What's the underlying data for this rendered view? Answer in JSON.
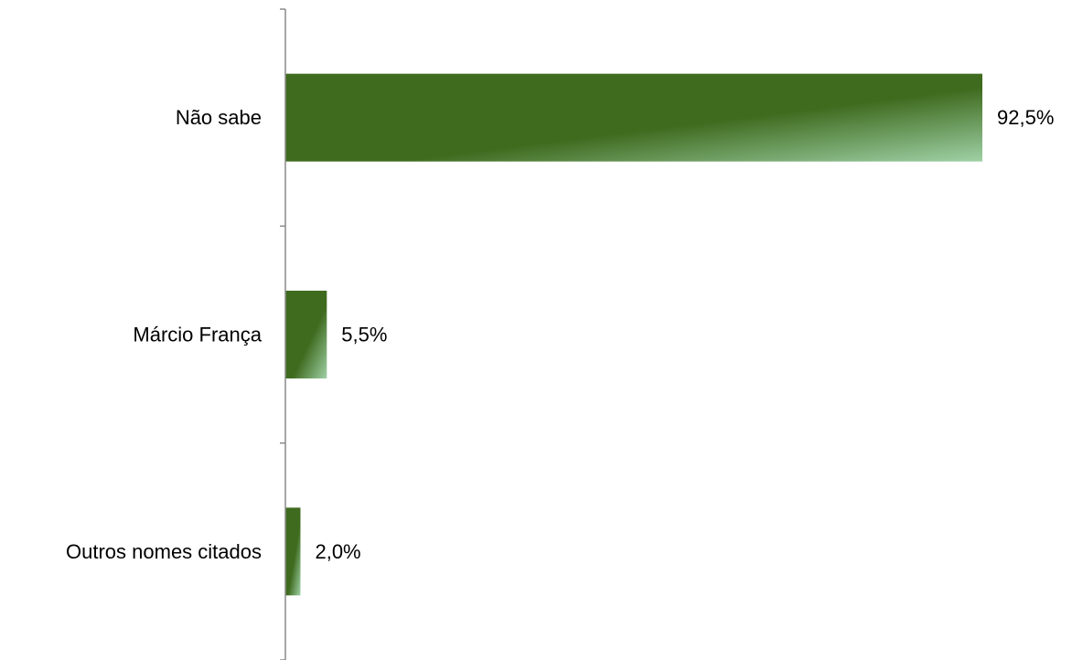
{
  "chart_data": {
    "type": "bar",
    "orientation": "horizontal",
    "categories": [
      "Não sabe",
      "Márcio França",
      "Outros nomes citados"
    ],
    "values": [
      92.5,
      5.5,
      2.0
    ],
    "value_labels": [
      "92,5%",
      "5,5%",
      "2,0%"
    ],
    "xlim": [
      0,
      92.5
    ],
    "grid": false,
    "legend": "none",
    "bar_color": "#3f6b1f",
    "bar_highlight_color": "#9fd1a6",
    "axis_color": "#8a8a8a"
  }
}
